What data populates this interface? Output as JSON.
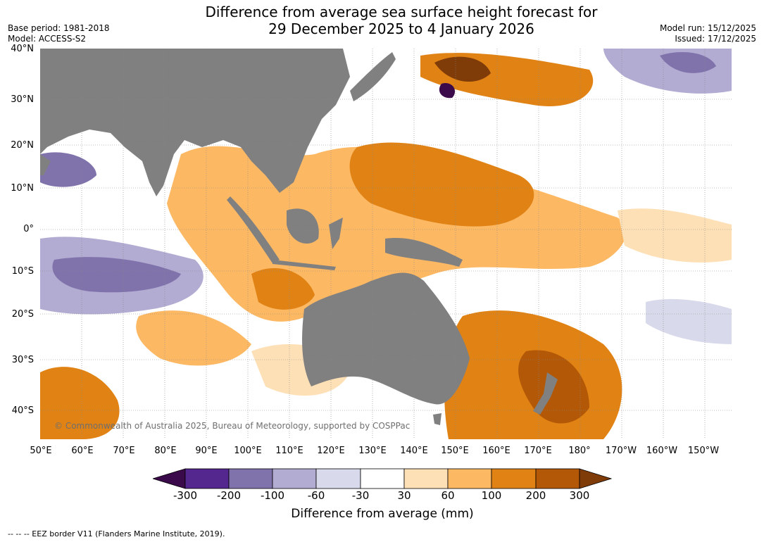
{
  "title": {
    "line1": "Difference from average sea surface height forecast for",
    "line2": "29 December 2025 to 4 January 2026"
  },
  "meta_left": {
    "base_period": "Base period: 1981-2018",
    "model": "Model: ACCESS-S2"
  },
  "meta_right": {
    "model_run": "Model run: 15/12/2025",
    "issued": "Issued: 17/12/2025"
  },
  "map": {
    "lat_labels": [
      "40°N",
      "30°N",
      "20°N",
      "10°N",
      "0°",
      "10°S",
      "20°S",
      "30°S",
      "40°S"
    ],
    "lon_labels": [
      "50°E",
      "60°E",
      "70°E",
      "80°E",
      "90°E",
      "100°E",
      "110°E",
      "120°E",
      "130°E",
      "140°E",
      "150°E",
      "160°E",
      "170°E",
      "180°",
      "170°W",
      "160°W",
      "150°W"
    ],
    "land_color": "#808080",
    "copyright": "© Commonwealth of Australia 2025, Bureau of Meteorology, supported by COSPPac"
  },
  "colorbar": {
    "ticks": [
      "-300",
      "-200",
      "-100",
      "-60",
      "-30",
      "30",
      "60",
      "100",
      "200",
      "300"
    ],
    "colors": [
      "#3b0a4a",
      "#54278f",
      "#8073ac",
      "#b2abd2",
      "#d8daeb",
      "#ffffff",
      "#fee0b6",
      "#fdb863",
      "#e08214",
      "#b35806",
      "#7f3b08"
    ],
    "label": "Difference from average (mm)"
  },
  "footnote": "--  --  -- EEZ border V11 (Flanders Marine Institute, 2019)."
}
